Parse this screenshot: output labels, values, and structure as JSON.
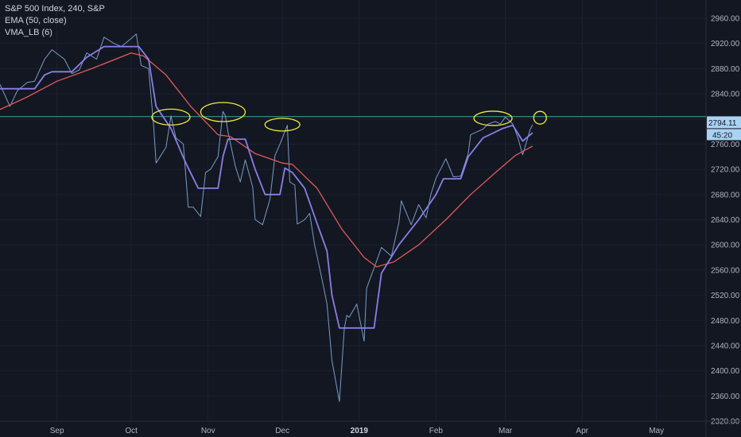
{
  "legend": {
    "title": "S&P 500 Index, 240, S&P",
    "ema": "EMA (50, close)",
    "vma": "VMA_LB (6)"
  },
  "price_tag": {
    "value": "2794.11",
    "countdown": "45:20"
  },
  "colors": {
    "background": "#131722",
    "price": "#7a9cc6",
    "ema": "#e05a5a",
    "vma": "#8a7fe8",
    "hline": "#3fa796",
    "annotation": "#f0eb3c",
    "tag": "#a9d2f3",
    "tag_dark": "#1e88e5",
    "grid": "#1c2130"
  },
  "chart_data": {
    "type": "line",
    "title": "S&P 500 Index, 240, S&P",
    "ylim": [
      2320,
      2960
    ],
    "yticks": [
      2320,
      2360,
      2400,
      2440,
      2480,
      2520,
      2560,
      2600,
      2640,
      2680,
      2720,
      2760,
      2800,
      2840,
      2880,
      2920,
      2960
    ],
    "xticks": [
      {
        "label": "Sep",
        "date": "2018-09-01"
      },
      {
        "label": "Oct",
        "date": "2018-10-01"
      },
      {
        "label": "Nov",
        "date": "2018-11-01"
      },
      {
        "label": "Dec",
        "date": "2018-12-01"
      },
      {
        "label": "2019",
        "date": "2019-01-01",
        "bold": true
      },
      {
        "label": "Feb",
        "date": "2019-02-01"
      },
      {
        "label": "Mar",
        "date": "2019-03-01"
      },
      {
        "label": "Apr",
        "date": "2019-04-01"
      },
      {
        "label": "May",
        "date": "2019-05-01"
      }
    ],
    "xlim": [
      "2018-08-09",
      "2019-05-21"
    ],
    "horizontal_line": 2800,
    "series": [
      {
        "name": "S&P 500 Index",
        "points": [
          [
            "2018-08-09",
            2855
          ],
          [
            "2018-08-13",
            2820
          ],
          [
            "2018-08-16",
            2845
          ],
          [
            "2018-08-20",
            2858
          ],
          [
            "2018-08-23",
            2860
          ],
          [
            "2018-08-27",
            2895
          ],
          [
            "2018-08-30",
            2910
          ],
          [
            "2018-09-04",
            2895
          ],
          [
            "2018-09-07",
            2872
          ],
          [
            "2018-09-10",
            2878
          ],
          [
            "2018-09-13",
            2905
          ],
          [
            "2018-09-17",
            2895
          ],
          [
            "2018-09-20",
            2930
          ],
          [
            "2018-09-24",
            2920
          ],
          [
            "2018-09-27",
            2915
          ],
          [
            "2018-10-01",
            2928
          ],
          [
            "2018-10-03",
            2935
          ],
          [
            "2018-10-05",
            2885
          ],
          [
            "2018-10-08",
            2880
          ],
          [
            "2018-10-10",
            2790
          ],
          [
            "2018-10-11",
            2730
          ],
          [
            "2018-10-15",
            2755
          ],
          [
            "2018-10-17",
            2805
          ],
          [
            "2018-10-19",
            2770
          ],
          [
            "2018-10-22",
            2760
          ],
          [
            "2018-10-24",
            2660
          ],
          [
            "2018-10-26",
            2660
          ],
          [
            "2018-10-29",
            2645
          ],
          [
            "2018-10-31",
            2715
          ],
          [
            "2018-11-02",
            2720
          ],
          [
            "2018-11-05",
            2740
          ],
          [
            "2018-11-07",
            2812
          ],
          [
            "2018-11-08",
            2805
          ],
          [
            "2018-11-09",
            2780
          ],
          [
            "2018-11-12",
            2725
          ],
          [
            "2018-11-14",
            2700
          ],
          [
            "2018-11-16",
            2735
          ],
          [
            "2018-11-19",
            2692
          ],
          [
            "2018-11-20",
            2640
          ],
          [
            "2018-11-23",
            2632
          ],
          [
            "2018-11-26",
            2673
          ],
          [
            "2018-11-28",
            2742
          ],
          [
            "2018-11-30",
            2760
          ],
          [
            "2018-12-03",
            2790
          ],
          [
            "2018-12-04",
            2700
          ],
          [
            "2018-12-06",
            2695
          ],
          [
            "2018-12-07",
            2633
          ],
          [
            "2018-12-10",
            2640
          ],
          [
            "2018-12-12",
            2650
          ],
          [
            "2018-12-14",
            2600
          ],
          [
            "2018-12-17",
            2545
          ],
          [
            "2018-12-19",
            2506
          ],
          [
            "2018-12-21",
            2416
          ],
          [
            "2018-12-24",
            2351
          ],
          [
            "2018-12-26",
            2468
          ],
          [
            "2018-12-27",
            2488
          ],
          [
            "2018-12-28",
            2485
          ],
          [
            "2018-12-31",
            2506
          ],
          [
            "2019-01-03",
            2447
          ],
          [
            "2019-01-04",
            2531
          ],
          [
            "2019-01-08",
            2574
          ],
          [
            "2019-01-10",
            2596
          ],
          [
            "2019-01-14",
            2582
          ],
          [
            "2019-01-17",
            2635
          ],
          [
            "2019-01-18",
            2670
          ],
          [
            "2019-01-22",
            2632
          ],
          [
            "2019-01-25",
            2664
          ],
          [
            "2019-01-28",
            2643
          ],
          [
            "2019-01-30",
            2681
          ],
          [
            "2019-02-01",
            2706
          ],
          [
            "2019-02-05",
            2737
          ],
          [
            "2019-02-08",
            2708
          ],
          [
            "2019-02-11",
            2709
          ],
          [
            "2019-02-14",
            2745
          ],
          [
            "2019-02-15",
            2775
          ],
          [
            "2019-02-20",
            2784
          ],
          [
            "2019-02-22",
            2792
          ],
          [
            "2019-02-25",
            2796
          ],
          [
            "2019-02-27",
            2792
          ],
          [
            "2019-03-01",
            2803
          ],
          [
            "2019-03-04",
            2792
          ],
          [
            "2019-03-06",
            2771
          ],
          [
            "2019-03-08",
            2743
          ],
          [
            "2019-03-11",
            2783
          ],
          [
            "2019-03-12",
            2791
          ]
        ]
      },
      {
        "name": "EMA (50, close)",
        "points": [
          [
            "2018-08-09",
            2815
          ],
          [
            "2018-08-20",
            2835
          ],
          [
            "2018-09-01",
            2860
          ],
          [
            "2018-09-15",
            2880
          ],
          [
            "2018-10-01",
            2905
          ],
          [
            "2018-10-06",
            2900
          ],
          [
            "2018-10-15",
            2870
          ],
          [
            "2018-10-25",
            2820
          ],
          [
            "2018-11-05",
            2775
          ],
          [
            "2018-11-10",
            2772
          ],
          [
            "2018-11-20",
            2745
          ],
          [
            "2018-12-01",
            2730
          ],
          [
            "2018-12-05",
            2728
          ],
          [
            "2018-12-15",
            2690
          ],
          [
            "2018-12-25",
            2625
          ],
          [
            "2019-01-03",
            2580
          ],
          [
            "2019-01-08",
            2565
          ],
          [
            "2019-01-15",
            2573
          ],
          [
            "2019-01-25",
            2600
          ],
          [
            "2019-02-05",
            2640
          ],
          [
            "2019-02-15",
            2680
          ],
          [
            "2019-02-25",
            2715
          ],
          [
            "2019-03-05",
            2742
          ],
          [
            "2019-03-12",
            2757
          ]
        ]
      },
      {
        "name": "VMA_LB (6)",
        "points": [
          [
            "2018-08-09",
            2848
          ],
          [
            "2018-08-23",
            2848
          ],
          [
            "2018-08-27",
            2870
          ],
          [
            "2018-08-30",
            2875
          ],
          [
            "2018-09-07",
            2875
          ],
          [
            "2018-09-13",
            2898
          ],
          [
            "2018-09-20",
            2915
          ],
          [
            "2018-10-04",
            2915
          ],
          [
            "2018-10-08",
            2895
          ],
          [
            "2018-10-11",
            2820
          ],
          [
            "2018-10-17",
            2785
          ],
          [
            "2018-10-23",
            2730
          ],
          [
            "2018-10-28",
            2690
          ],
          [
            "2018-11-05",
            2690
          ],
          [
            "2018-11-07",
            2740
          ],
          [
            "2018-11-09",
            2768
          ],
          [
            "2018-11-16",
            2768
          ],
          [
            "2018-11-20",
            2720
          ],
          [
            "2018-11-24",
            2680
          ],
          [
            "2018-11-30",
            2680
          ],
          [
            "2018-12-02",
            2722
          ],
          [
            "2018-12-05",
            2715
          ],
          [
            "2018-12-10",
            2690
          ],
          [
            "2018-12-14",
            2645
          ],
          [
            "2018-12-19",
            2590
          ],
          [
            "2018-12-21",
            2520
          ],
          [
            "2018-12-24",
            2468
          ],
          [
            "2019-01-07",
            2468
          ],
          [
            "2019-01-10",
            2555
          ],
          [
            "2019-01-17",
            2600
          ],
          [
            "2019-01-25",
            2640
          ],
          [
            "2019-02-01",
            2680
          ],
          [
            "2019-02-04",
            2705
          ],
          [
            "2019-02-11",
            2705
          ],
          [
            "2019-02-14",
            2740
          ],
          [
            "2019-02-20",
            2770
          ],
          [
            "2019-02-28",
            2785
          ],
          [
            "2019-03-04",
            2790
          ],
          [
            "2019-03-08",
            2765
          ],
          [
            "2019-03-12",
            2778
          ]
        ]
      }
    ]
  }
}
